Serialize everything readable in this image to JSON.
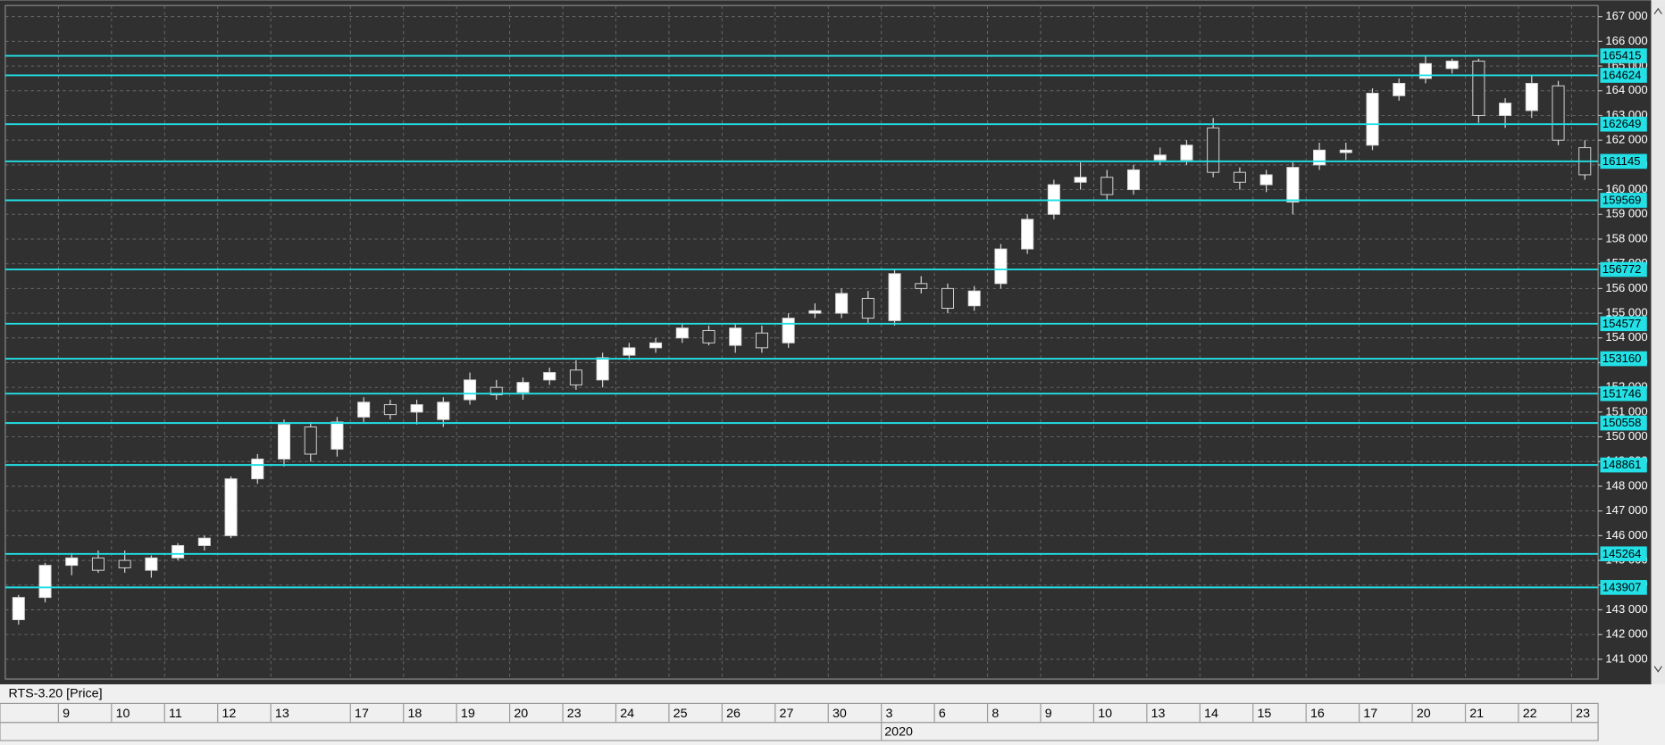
{
  "chart_data": {
    "type": "candlestick",
    "title": "RTS-3.20 [Price]",
    "x_group_label": "2020",
    "categories": [
      null,
      null,
      "9",
      null,
      "10",
      null,
      "11",
      null,
      "12",
      null,
      "13",
      null,
      null,
      "17",
      null,
      "18",
      null,
      "19",
      null,
      "20",
      null,
      "23",
      null,
      "24",
      null,
      "25",
      null,
      "26",
      null,
      "27",
      null,
      "30",
      null,
      "3",
      null,
      "6",
      null,
      "8",
      null,
      "9",
      null,
      "10",
      null,
      "13",
      null,
      "14",
      null,
      "15",
      null,
      "16",
      null,
      "17",
      null,
      "20",
      null,
      "21",
      null,
      "22",
      null,
      "23"
    ],
    "open": [
      142600,
      143500,
      144800,
      145100,
      145000,
      144600,
      145100,
      145600,
      146000,
      148300,
      149100,
      150400,
      149500,
      150800,
      151300,
      151000,
      150700,
      151500,
      152000,
      151800,
      152300,
      152700,
      152300,
      153300,
      153600,
      154000,
      154300,
      153700,
      154200,
      153800,
      155000,
      155000,
      155600,
      154700,
      156200,
      156000,
      155300,
      156200,
      157600,
      159000,
      160300,
      160500,
      160000,
      161200,
      161200,
      162500,
      160700,
      160200,
      159500,
      161000,
      161500,
      161800,
      163800,
      164500,
      164900,
      165200,
      163000,
      163200,
      164200,
      161700
    ],
    "high": [
      143600,
      144900,
      145300,
      145400,
      145400,
      145200,
      145700,
      146000,
      148400,
      149300,
      150700,
      150600,
      150800,
      151600,
      151500,
      151500,
      151600,
      152600,
      152300,
      152400,
      152800,
      153100,
      153400,
      153800,
      154000,
      154600,
      154500,
      154600,
      154500,
      155000,
      155400,
      156000,
      155900,
      156800,
      156500,
      156200,
      156100,
      157800,
      159000,
      160400,
      161100,
      160800,
      161000,
      161700,
      162000,
      162900,
      160900,
      160800,
      161100,
      161900,
      161900,
      164100,
      164500,
      165400,
      165300,
      165300,
      163700,
      164600,
      164400,
      162000
    ],
    "low": [
      142400,
      143300,
      144400,
      144500,
      144500,
      144300,
      145000,
      145400,
      145900,
      148100,
      148800,
      149000,
      149200,
      150600,
      150700,
      150500,
      150400,
      151300,
      151500,
      151500,
      152100,
      151900,
      152000,
      153100,
      153400,
      153800,
      153700,
      153400,
      153400,
      153600,
      154800,
      154800,
      154600,
      154500,
      155800,
      155000,
      155100,
      156000,
      157400,
      158800,
      160000,
      159600,
      159800,
      161000,
      161000,
      160500,
      160000,
      159900,
      159000,
      160800,
      161200,
      161600,
      163600,
      164300,
      164700,
      162700,
      162500,
      162900,
      161800,
      160400
    ],
    "close": [
      143500,
      144800,
      145100,
      144600,
      144700,
      145100,
      145600,
      145900,
      148300,
      149100,
      150500,
      149300,
      150600,
      151400,
      150900,
      151300,
      151400,
      152300,
      151700,
      152200,
      152600,
      152100,
      153200,
      153600,
      153800,
      154400,
      153800,
      154400,
      153600,
      154800,
      155100,
      155800,
      154800,
      156600,
      156000,
      155200,
      155900,
      157600,
      158800,
      160200,
      160500,
      159800,
      160800,
      161400,
      161800,
      160700,
      160300,
      160600,
      160900,
      161600,
      161600,
      163900,
      164300,
      165100,
      165200,
      163000,
      163500,
      164300,
      162000,
      160600
    ],
    "up_color": "#ffffff",
    "down_color": "#303030",
    "wick_color": "#d8d8d8",
    "levels": [
      165415,
      164624,
      162649,
      161145,
      159569,
      156772,
      154577,
      153160,
      151746,
      150558,
      148861,
      145264,
      143907
    ],
    "level_color": "#22e0e6",
    "ylim": [
      140200,
      167450
    ],
    "yticks": [
      {
        "value": 141000,
        "label": "141 000"
      },
      {
        "value": 142000,
        "label": "142 000"
      },
      {
        "value": 143000,
        "label": "143 000"
      },
      {
        "value": 144000,
        "label": "144 000"
      },
      {
        "value": 145000,
        "label": "145 000"
      },
      {
        "value": 146000,
        "label": "146 000"
      },
      {
        "value": 147000,
        "label": "147 000"
      },
      {
        "value": 148000,
        "label": "148 000"
      },
      {
        "value": 149000,
        "label": "149 000"
      },
      {
        "value": 150000,
        "label": "150 000"
      },
      {
        "value": 151000,
        "label": "151 000"
      },
      {
        "value": 152000,
        "label": "152 000"
      },
      {
        "value": 153000,
        "label": "153 000"
      },
      {
        "value": 154000,
        "label": "154 000"
      },
      {
        "value": 155000,
        "label": "155 000"
      },
      {
        "value": 156000,
        "label": "156 000"
      },
      {
        "value": 157000,
        "label": "157 000"
      },
      {
        "value": 158000,
        "label": "158 000"
      },
      {
        "value": 159000,
        "label": "159 000"
      },
      {
        "value": 160000,
        "label": "160 000"
      },
      {
        "value": 161000,
        "label": "161 000"
      },
      {
        "value": 162000,
        "label": "162 000"
      },
      {
        "value": 163000,
        "label": "163 000"
      },
      {
        "value": 164000,
        "label": "164 000"
      },
      {
        "value": 165000,
        "label": "165 000"
      },
      {
        "value": 166000,
        "label": "166 000"
      },
      {
        "value": 167000,
        "label": "167 000"
      }
    ],
    "grid": true
  }
}
